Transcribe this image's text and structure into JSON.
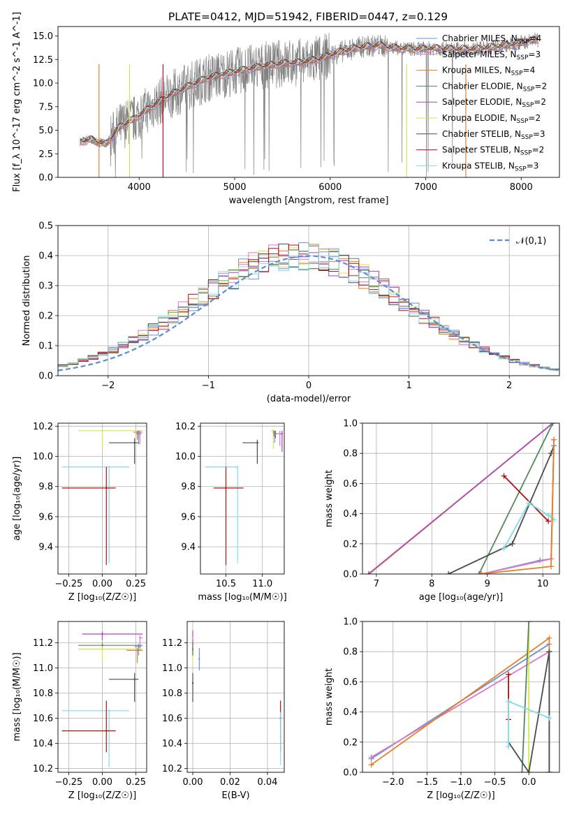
{
  "figure_title": "PLATE=0412, MJD=51942, FIBERID=0447, z=0.129",
  "colors": {
    "Chabrier MILES": "#6a8fdc",
    "Salpeter MILES": "#e377c2",
    "Kroupa MILES": "#e67e22",
    "Chabrier ELODIE": "#4f8a5b",
    "Salpeter ELODIE": "#b23fc4",
    "Kroupa ELODIE": "#d6e05a",
    "Chabrier STELIB": "#4a4a4a",
    "Salpeter STELIB": "#b30f0f",
    "Kroupa STELIB": "#7fdce6"
  },
  "chart_data": [
    {
      "id": "spectrum",
      "type": "line",
      "title": "PLATE=0412, MJD=51942, FIBERID=0447, z=0.129",
      "xlabel": "wavelength [Angstrom, rest frame]",
      "ylabel": "Flux [f_λ 10^-17 erg cm^-2 s^-1 A^-1]",
      "xlim": [
        3150,
        8400
      ],
      "ylim": [
        0,
        16
      ],
      "xticks": [
        4000,
        5000,
        6000,
        7000,
        8000
      ],
      "yticks": [
        0.0,
        2.5,
        5.0,
        7.5,
        10.0,
        12.5,
        15.0
      ],
      "legend_position": "top-right",
      "legend": [
        {
          "name": "Chabrier MILES",
          "nssp": "4"
        },
        {
          "name": "Salpeter MILES",
          "nssp": "3"
        },
        {
          "name": "Kroupa MILES",
          "nssp": "4"
        },
        {
          "name": "Chabrier ELODIE",
          "nssp": "2"
        },
        {
          "name": "Salpeter ELODIE",
          "nssp": "2"
        },
        {
          "name": "Kroupa ELODIE",
          "nssp": "2"
        },
        {
          "name": "Chabrier STELIB",
          "nssp": "3"
        },
        {
          "name": "Salpeter STELIB",
          "nssp": "2"
        },
        {
          "name": "Kroupa STELIB",
          "nssp": "3"
        }
      ],
      "continuum_x": [
        3380,
        3500,
        3650,
        3800,
        3950,
        4100,
        4300,
        4500,
        4700,
        4900,
        5100,
        5300,
        5500,
        5700,
        5900,
        6100,
        6300,
        6500,
        6700,
        6900,
        7100,
        7300,
        7500,
        7700,
        7900,
        8150
      ],
      "continuum_y": [
        3.8,
        4.0,
        3.5,
        5.4,
        6.2,
        7.3,
        8.6,
        9.6,
        10.5,
        11.0,
        11.4,
        11.8,
        12.1,
        12.2,
        12.6,
        13.3,
        13.8,
        14.0,
        13.7,
        13.6,
        13.7,
        13.6,
        13.6,
        13.8,
        14.1,
        14.6
      ],
      "data_line_color": "#808080"
    },
    {
      "id": "residuals",
      "type": "histogram",
      "xlabel": "(data-model)/error",
      "ylabel": "Normed distribution",
      "xlim": [
        -2.5,
        2.5
      ],
      "ylim": [
        0,
        0.5
      ],
      "xticks": [
        -2,
        -1,
        0,
        1,
        2
      ],
      "yticks": [
        0.0,
        0.1,
        0.2,
        0.3,
        0.4,
        0.5
      ],
      "bin_width": 0.1,
      "reference_label": "𝒩(0,1)",
      "reference_color": "#5b8bd6",
      "legend_position": "top-right"
    },
    {
      "id": "age-vs-Z",
      "type": "errorbar",
      "xlabel": "Z [log₁₀(Z/Z☉)]",
      "ylabel": "age  [log₁₀(age/yr)]",
      "xlim": [
        -0.33,
        0.33
      ],
      "ylim": [
        9.22,
        10.22
      ],
      "xticks": [
        -0.25,
        0.0,
        0.25
      ],
      "xtick_labels": [
        "−0.25",
        "0.00",
        "0.25"
      ],
      "yticks": [
        9.4,
        9.6,
        9.8,
        10.0,
        10.2
      ],
      "points": [
        {
          "model": "Kroupa ELODIE",
          "x": 0.0,
          "xerr": [
            0.18,
            0.3
          ],
          "y": 10.17,
          "yerr": [
            0.12,
            0.01
          ]
        },
        {
          "model": "Salpeter ELODIE",
          "x": 0.27,
          "xerr": [
            0.01,
            0.02
          ],
          "y": 10.15,
          "yerr": [
            0.04,
            0.02
          ]
        },
        {
          "model": "Chabrier ELODIE",
          "x": 0.27,
          "xerr": [
            0.01,
            0.02
          ],
          "y": 10.15,
          "yerr": [
            0.03,
            0.02
          ]
        },
        {
          "model": "Salpeter MILES",
          "x": 0.28,
          "xerr": [
            0.02,
            0.02
          ],
          "y": 10.16,
          "yerr": [
            0.08,
            0.01
          ]
        },
        {
          "model": "Kroupa MILES",
          "x": 0.26,
          "xerr": [
            0.03,
            0.02
          ],
          "y": 10.16,
          "yerr": [
            0.05,
            0.01
          ]
        },
        {
          "model": "Chabrier MILES",
          "x": 0.27,
          "xerr": [
            0.02,
            0.02
          ],
          "y": 10.15,
          "yerr": [
            0.07,
            0.02
          ]
        },
        {
          "model": "Chabrier STELIB",
          "x": 0.24,
          "xerr": [
            0.19,
            0.03
          ],
          "y": 10.09,
          "yerr": [
            0.14,
            0.03
          ]
        },
        {
          "model": "Kroupa STELIB",
          "x": 0.05,
          "xerr": [
            0.35,
            0.15
          ],
          "y": 9.93,
          "yerr": [
            0.64,
            0.0
          ]
        },
        {
          "model": "Salpeter STELIB",
          "x": 0.03,
          "xerr": [
            0.33,
            0.07
          ],
          "y": 9.79,
          "yerr": [
            0.51,
            0.14
          ]
        }
      ]
    },
    {
      "id": "age-vs-mass",
      "type": "errorbar",
      "xlabel": "mass [log₁₀(M/M☉)]",
      "ylabel": "",
      "xlim": [
        10.15,
        11.3
      ],
      "ylim": [
        9.22,
        10.22
      ],
      "xticks": [
        10.5,
        11.0
      ],
      "yticks": [
        9.4,
        9.6,
        9.8,
        10.0,
        10.2
      ],
      "points": [
        {
          "model": "Salpeter ELODIE",
          "x": 11.27,
          "xerr": [
            0.02,
            0.01
          ],
          "y": 10.15,
          "yerr": [
            0.12,
            0.02
          ]
        },
        {
          "model": "Salpeter MILES",
          "x": 11.24,
          "xerr": [
            0.04,
            0.02
          ],
          "y": 10.15,
          "yerr": [
            0.08,
            0.02
          ]
        },
        {
          "model": "Kroupa ELODIE",
          "x": 11.15,
          "xerr": [
            0.03,
            0.02
          ],
          "y": 10.17,
          "yerr": [
            0.12,
            0.01
          ]
        },
        {
          "model": "Chabrier ELODIE",
          "x": 11.18,
          "xerr": [
            0.02,
            0.02
          ],
          "y": 10.15,
          "yerr": [
            0.03,
            0.02
          ]
        },
        {
          "model": "Kroupa MILES",
          "x": 11.16,
          "xerr": [
            0.02,
            0.02
          ],
          "y": 10.16,
          "yerr": [
            0.03,
            0.01
          ]
        },
        {
          "model": "Chabrier MILES",
          "x": 11.17,
          "xerr": [
            0.02,
            0.02
          ],
          "y": 10.15,
          "yerr": [
            0.06,
            0.02
          ]
        },
        {
          "model": "Chabrier STELIB",
          "x": 10.93,
          "xerr": [
            0.2,
            0.02
          ],
          "y": 10.09,
          "yerr": [
            0.14,
            0.02
          ]
        },
        {
          "model": "Kroupa STELIB",
          "x": 10.66,
          "xerr": [
            0.45,
            0.0
          ],
          "y": 9.93,
          "yerr": [
            0.64,
            0.0
          ]
        },
        {
          "model": "Salpeter STELIB",
          "x": 10.5,
          "xerr": [
            0.17,
            0.24
          ],
          "y": 9.79,
          "yerr": [
            0.51,
            0.14
          ]
        }
      ]
    },
    {
      "id": "massweight-vs-age",
      "type": "line",
      "xlabel": "age  [log₁₀(age/yr)]",
      "ylabel": "mass weight",
      "xlim": [
        6.75,
        10.3
      ],
      "ylim": [
        0,
        1
      ],
      "xticks": [
        7,
        8,
        9,
        10
      ],
      "yticks": [
        0.0,
        0.2,
        0.4,
        0.6,
        0.8,
        1.0
      ],
      "series": [
        {
          "model": "Kroupa ELODIE",
          "x": [
            6.88,
            10.18
          ],
          "y": [
            0.0,
            1.0
          ]
        },
        {
          "model": "Salpeter ELODIE",
          "x": [
            6.86,
            10.18
          ],
          "y": [
            0.0,
            1.0
          ]
        },
        {
          "model": "Chabrier ELODIE",
          "x": [
            8.85,
            10.18
          ],
          "y": [
            0.0,
            1.0
          ]
        },
        {
          "model": "Chabrier STELIB",
          "x": [
            8.3,
            9.45,
            10.15,
            10.2
          ],
          "y": [
            0.0,
            0.2,
            0.8,
            0.85
          ]
        },
        {
          "model": "Salpeter STELIB",
          "x": [
            9.3,
            10.1
          ],
          "y": [
            0.65,
            0.35
          ]
        },
        {
          "model": "Kroupa STELIB",
          "x": [
            9.3,
            9.75,
            10.1,
            10.2
          ],
          "y": [
            0.17,
            0.47,
            0.39,
            0.36
          ]
        },
        {
          "model": "Chabrier MILES",
          "x": [
            8.9,
            9.95,
            10.15,
            10.2
          ],
          "y": [
            0.0,
            0.09,
            0.1,
            0.85
          ]
        },
        {
          "model": "Salpeter MILES",
          "x": [
            8.9,
            10.15,
            10.2
          ],
          "y": [
            0.0,
            0.1,
            0.89
          ]
        },
        {
          "model": "Kroupa MILES",
          "x": [
            8.88,
            10.15,
            10.2
          ],
          "y": [
            0.0,
            0.05,
            0.89
          ]
        }
      ]
    },
    {
      "id": "mass-vs-Z",
      "type": "errorbar",
      "xlabel": "Z [log₁₀(Z/Z☉)]",
      "ylabel": "mass [log₁₀(M/M☉)]",
      "xlim": [
        -0.33,
        0.33
      ],
      "ylim": [
        10.17,
        11.37
      ],
      "xticks": [
        -0.25,
        0.0,
        0.25
      ],
      "xtick_labels": [
        "−0.25",
        "0.00",
        "0.25"
      ],
      "yticks": [
        10.2,
        10.4,
        10.6,
        10.8,
        11.0,
        11.2
      ],
      "points": [
        {
          "model": "Salpeter ELODIE",
          "x": 0.0,
          "xerr": [
            0.15,
            0.3
          ],
          "y": 11.27,
          "yerr": [
            0.05,
            0.02
          ]
        },
        {
          "model": "Salpeter MILES",
          "x": 0.28,
          "xerr": [
            0.0,
            0.02
          ],
          "y": 11.24,
          "yerr": [
            0.1,
            0.02
          ]
        },
        {
          "model": "Chabrier ELODIE",
          "x": 0.0,
          "xerr": [
            0.18,
            0.3
          ],
          "y": 11.18,
          "yerr": [
            0.03,
            0.02
          ]
        },
        {
          "model": "Kroupa ELODIE",
          "x": 0.0,
          "xerr": [
            0.18,
            0.3
          ],
          "y": 11.15,
          "yerr": [
            0.1,
            0.02
          ]
        },
        {
          "model": "Kroupa MILES",
          "x": 0.26,
          "xerr": [
            0.08,
            0.04
          ],
          "y": 11.14,
          "yerr": [
            0.1,
            0.02
          ]
        },
        {
          "model": "Chabrier MILES",
          "x": 0.27,
          "xerr": [
            0.03,
            0.02
          ],
          "y": 11.17,
          "yerr": [
            0.07,
            0.02
          ]
        },
        {
          "model": "Chabrier STELIB",
          "x": 0.24,
          "xerr": [
            0.19,
            0.03
          ],
          "y": 10.91,
          "yerr": [
            0.18,
            0.05
          ]
        },
        {
          "model": "Kroupa STELIB",
          "x": 0.05,
          "xerr": [
            0.35,
            0.15
          ],
          "y": 10.66,
          "yerr": [
            0.45,
            0.0
          ]
        },
        {
          "model": "Salpeter STELIB",
          "x": 0.03,
          "xerr": [
            0.33,
            0.07
          ],
          "y": 10.5,
          "yerr": [
            0.17,
            0.24
          ]
        }
      ]
    },
    {
      "id": "mass-vs-ebv",
      "type": "errorbar",
      "xlabel": "E(B-V)",
      "ylabel": "",
      "xlim": [
        -0.003,
        0.049
      ],
      "ylim": [
        10.17,
        11.37
      ],
      "xticks": [
        0.0,
        0.02,
        0.04
      ],
      "xtick_labels": [
        "0.00",
        "0.02",
        "0.04"
      ],
      "yticks": [
        10.2,
        10.4,
        10.6,
        10.8,
        11.0,
        11.2
      ],
      "points": [
        {
          "model": "Salpeter ELODIE",
          "x": 0.0,
          "y": 11.2,
          "yerr": [
            0.1,
            0.1
          ]
        },
        {
          "model": "Salpeter MILES",
          "x": 0.0,
          "y": 11.22,
          "yerr": [
            0.1,
            0.03
          ]
        },
        {
          "model": "Kroupa ELODIE",
          "x": 0.0,
          "y": 11.12,
          "yerr": [
            0.1,
            0.08
          ]
        },
        {
          "model": "Chabrier ELODIE",
          "x": 0.0,
          "y": 11.15,
          "yerr": [
            0.05,
            0.05
          ]
        },
        {
          "model": "Chabrier MILES",
          "x": 0.0035,
          "y": 11.07,
          "yerr": [
            0.09,
            0.09
          ]
        },
        {
          "model": "Chabrier STELIB",
          "x": 0.0,
          "y": 10.88,
          "yerr": [
            0.15,
            0.08
          ]
        },
        {
          "model": "Salpeter STELIB",
          "x": 0.047,
          "y": 10.6,
          "yerr": [
            0.26,
            0.14
          ]
        },
        {
          "model": "Kroupa STELIB",
          "x": 0.047,
          "y": 10.45,
          "yerr": [
            0.22,
            0.2
          ]
        }
      ]
    },
    {
      "id": "massweight-vs-Z",
      "type": "line",
      "xlabel": "Z [log₁₀(Z/Z☉)]",
      "ylabel": "mass weight",
      "xlim": [
        -2.45,
        0.45
      ],
      "ylim": [
        0,
        1
      ],
      "xticks": [
        -2.0,
        -1.5,
        -1.0,
        -0.5,
        0.0
      ],
      "xtick_labels": [
        "−2.0",
        "−1.5",
        "−1.0",
        "−0.5",
        "0.0"
      ],
      "yticks": [
        0.0,
        0.2,
        0.4,
        0.6,
        0.8,
        1.0
      ],
      "series": [
        {
          "model": "Chabrier MILES",
          "x": [
            -2.32,
            0.3
          ],
          "y": [
            0.09,
            0.85
          ]
        },
        {
          "model": "Salpeter MILES",
          "x": [
            -2.32,
            0.3
          ],
          "y": [
            0.1,
            0.8
          ]
        },
        {
          "model": "Kroupa MILES",
          "x": [
            -2.32,
            0.3,
            0.3
          ],
          "y": [
            0.05,
            0.89,
            0.0
          ]
        },
        {
          "model": "Kroupa ELODIE",
          "x": [
            0.0,
            0.0
          ],
          "y": [
            0.0,
            1.0
          ]
        },
        {
          "model": "Chabrier ELODIE",
          "x": [
            -0.1,
            0.0
          ],
          "y": [
            0.0,
            1.0
          ]
        },
        {
          "model": "Chabrier STELIB",
          "x": [
            -0.3,
            0.0,
            0.3,
            0.3
          ],
          "y": [
            0.2,
            0.0,
            0.8,
            0.0
          ]
        },
        {
          "model": "Salpeter STELIB",
          "x": [
            -0.3,
            -0.3
          ],
          "y": [
            0.35,
            0.65
          ]
        },
        {
          "model": "Kroupa STELIB",
          "x": [
            -0.3,
            -0.3,
            -0.3,
            0.3
          ],
          "y": [
            0.17,
            0.2,
            0.47,
            0.36
          ]
        }
      ]
    }
  ]
}
